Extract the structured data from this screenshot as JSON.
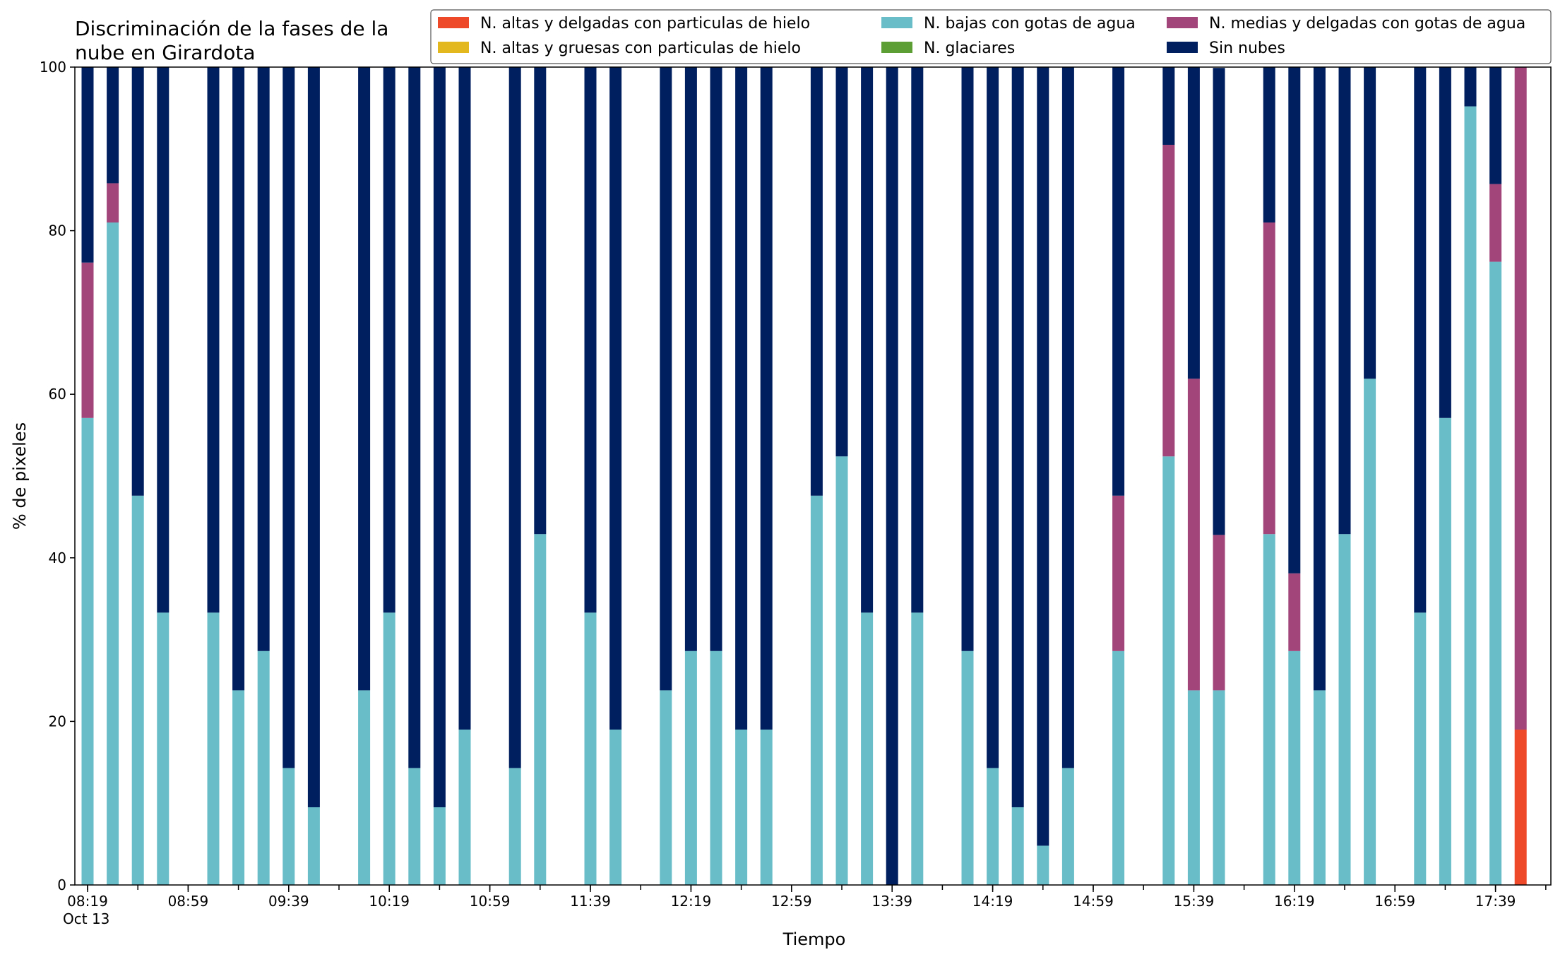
{
  "chart_data": {
    "type": "bar",
    "stacked": true,
    "title_lines": [
      "Discriminación de la fases de la",
      "nube en Girardota"
    ],
    "xlabel": "Tiempo",
    "ylabel": "% de pixeles",
    "ylim": [
      0,
      100
    ],
    "y_ticks": [
      "0",
      "20",
      "40",
      "60",
      "80",
      "100"
    ],
    "x_tick_labels": [
      "08:19",
      "08:59",
      "09:39",
      "10:19",
      "10:59",
      "11:39",
      "12:19",
      "12:59",
      "13:39",
      "14:19",
      "14:59",
      "15:39",
      "16:19",
      "16:59",
      "17:39"
    ],
    "x_date_label": "Oct 13",
    "grid": false,
    "legend_position": "top-right",
    "x_slots": [
      "08:19",
      "08:29",
      "08:39",
      "08:49",
      "08:59",
      "09:09",
      "09:19",
      "09:29",
      "09:39",
      "09:49",
      "09:59",
      "10:09",
      "10:19",
      "10:29",
      "10:39",
      "10:49",
      "10:59",
      "11:09",
      "11:19",
      "11:29",
      "11:39",
      "11:49",
      "11:59",
      "12:09",
      "12:19",
      "12:29",
      "12:39",
      "12:49",
      "12:59",
      "13:09",
      "13:19",
      "13:29",
      "13:39",
      "13:49",
      "13:59",
      "14:09",
      "14:19",
      "14:29",
      "14:39",
      "14:49",
      "14:59",
      "15:09",
      "15:19",
      "15:29",
      "15:39",
      "15:49",
      "15:59",
      "16:09",
      "16:19",
      "16:29",
      "16:39",
      "16:49",
      "16:59",
      "17:09",
      "17:19",
      "17:29",
      "17:39",
      "17:49",
      "17:59"
    ],
    "series": [
      {
        "name": "N. altas y delgadas con particulas de hielo",
        "color": "#ee4a2a",
        "values": [
          0,
          0,
          0,
          0,
          null,
          0,
          0,
          0,
          0,
          0,
          null,
          0,
          0,
          0,
          0,
          0,
          null,
          0,
          0,
          null,
          0,
          0,
          null,
          0,
          0,
          0,
          0,
          0,
          null,
          0,
          0,
          0,
          0,
          0,
          null,
          0,
          0,
          0,
          0,
          0,
          null,
          0,
          null,
          0,
          0,
          0,
          null,
          0,
          0,
          0,
          0,
          0,
          null,
          0,
          0,
          0,
          0,
          19,
          null
        ]
      },
      {
        "name": "N. altas y gruesas con particulas de hielo",
        "color": "#e3b81f",
        "values": [
          0,
          0,
          0,
          0,
          null,
          0,
          0,
          0,
          0,
          0,
          null,
          0,
          0,
          0,
          0,
          0,
          null,
          0,
          0,
          null,
          0,
          0,
          null,
          0,
          0,
          0,
          0,
          0,
          null,
          0,
          0,
          0,
          0,
          0,
          null,
          0,
          0,
          0,
          0,
          0,
          null,
          0,
          null,
          0,
          0,
          0,
          null,
          0,
          0,
          0,
          0,
          0,
          null,
          0,
          0,
          0,
          0,
          0,
          null
        ]
      },
      {
        "name": "N. bajas con gotas de agua",
        "color": "#68bdc8",
        "values": [
          57.1,
          81,
          47.6,
          33.3,
          null,
          33.3,
          23.8,
          28.6,
          14.3,
          9.5,
          null,
          23.8,
          33.3,
          14.3,
          9.5,
          19,
          null,
          14.3,
          42.9,
          null,
          33.3,
          19,
          null,
          23.8,
          28.6,
          28.6,
          19,
          19,
          null,
          47.6,
          52.4,
          33.3,
          0,
          33.3,
          null,
          28.6,
          14.3,
          9.5,
          4.8,
          14.3,
          null,
          28.6,
          null,
          52.4,
          23.8,
          23.8,
          null,
          42.9,
          28.6,
          23.8,
          42.9,
          61.9,
          null,
          33.3,
          57.1,
          95.2,
          76.2,
          0,
          null
        ]
      },
      {
        "name": "N. glaciares",
        "color": "#5c9e34",
        "values": [
          0,
          0,
          0,
          0,
          null,
          0,
          0,
          0,
          0,
          0,
          null,
          0,
          0,
          0,
          0,
          0,
          null,
          0,
          0,
          null,
          0,
          0,
          null,
          0,
          0,
          0,
          0,
          0,
          null,
          0,
          0,
          0,
          0,
          0,
          null,
          0,
          0,
          0,
          0,
          0,
          null,
          0,
          null,
          0,
          0,
          0,
          null,
          0,
          0,
          0,
          0,
          0,
          null,
          0,
          0,
          0,
          0,
          0,
          null
        ]
      },
      {
        "name": "N. medias y delgadas con gotas de agua",
        "color": "#a1457a",
        "values": [
          19,
          4.8,
          0,
          0,
          null,
          0,
          0,
          0,
          0,
          0,
          null,
          0,
          0,
          0,
          0,
          0,
          null,
          0,
          0,
          null,
          0,
          0,
          null,
          0,
          0,
          0,
          0,
          0,
          null,
          0,
          0,
          0,
          0,
          0,
          null,
          0,
          0,
          0,
          0,
          0,
          null,
          19,
          null,
          38.1,
          38.1,
          19,
          null,
          38.1,
          9.5,
          0,
          0,
          0,
          null,
          0,
          0,
          0,
          9.5,
          81,
          null
        ]
      },
      {
        "name": "Sin nubes",
        "color": "#001f5f",
        "values": [
          23.9,
          14.2,
          52.4,
          66.7,
          null,
          66.7,
          76.2,
          71.4,
          85.7,
          90.5,
          null,
          76.2,
          66.7,
          85.7,
          90.5,
          81,
          null,
          85.7,
          57.1,
          null,
          66.7,
          81,
          null,
          76.2,
          71.4,
          71.4,
          81,
          81,
          null,
          52.4,
          47.6,
          66.7,
          100,
          66.7,
          null,
          71.4,
          85.7,
          90.5,
          95.2,
          85.7,
          null,
          52.4,
          null,
          9.5,
          38.1,
          57.1,
          null,
          19,
          61.9,
          76.2,
          57.1,
          38.1,
          null,
          66.7,
          42.9,
          4.8,
          14.3,
          0,
          null
        ]
      }
    ]
  }
}
